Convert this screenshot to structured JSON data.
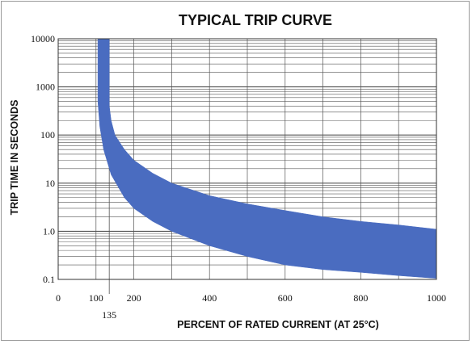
{
  "chart_data": {
    "type": "area",
    "title": "TYPICAL TRIP CURVE",
    "xlabel": "PERCENT OF RATED CURRENT (AT 25°C)",
    "ylabel": "TRIP TIME IN SECONDS",
    "x_scale": "linear",
    "y_scale": "log",
    "xlim": [
      0,
      1000
    ],
    "ylim": [
      0.1,
      10000
    ],
    "x_ticks": [
      {
        "value": 0,
        "label": "0"
      },
      {
        "value": 100,
        "label": "100"
      },
      {
        "value": 200,
        "label": "200"
      },
      {
        "value": 400,
        "label": "400"
      },
      {
        "value": 600,
        "label": "600"
      },
      {
        "value": 800,
        "label": "800"
      },
      {
        "value": 1000,
        "label": "1000"
      }
    ],
    "x_annotation": {
      "value": 135,
      "label": "135"
    },
    "y_ticks": [
      {
        "value": 10000,
        "label": "10000"
      },
      {
        "value": 1000,
        "label": "1000"
      },
      {
        "value": 100,
        "label": "100"
      },
      {
        "value": 10,
        "label": "10"
      },
      {
        "value": 1,
        "label": "1.0"
      },
      {
        "value": 0.1,
        "label": "0.1"
      }
    ],
    "grid": true,
    "band_color": "#4a6cc0",
    "band": {
      "upper": [
        {
          "x": 135,
          "y": 10000
        },
        {
          "x": 135,
          "y": 400
        },
        {
          "x": 140,
          "y": 200
        },
        {
          "x": 150,
          "y": 100
        },
        {
          "x": 175,
          "y": 50
        },
        {
          "x": 200,
          "y": 30
        },
        {
          "x": 250,
          "y": 16
        },
        {
          "x": 300,
          "y": 10
        },
        {
          "x": 400,
          "y": 5.5
        },
        {
          "x": 500,
          "y": 3.7
        },
        {
          "x": 600,
          "y": 2.7
        },
        {
          "x": 700,
          "y": 2.0
        },
        {
          "x": 800,
          "y": 1.6
        },
        {
          "x": 900,
          "y": 1.35
        },
        {
          "x": 1000,
          "y": 1.1
        }
      ],
      "lower": [
        {
          "x": 105,
          "y": 10000
        },
        {
          "x": 105,
          "y": 1000
        },
        {
          "x": 105,
          "y": 500
        },
        {
          "x": 110,
          "y": 150
        },
        {
          "x": 120,
          "y": 50
        },
        {
          "x": 140,
          "y": 15
        },
        {
          "x": 175,
          "y": 5
        },
        {
          "x": 200,
          "y": 3
        },
        {
          "x": 250,
          "y": 1.6
        },
        {
          "x": 300,
          "y": 1.0
        },
        {
          "x": 400,
          "y": 0.5
        },
        {
          "x": 500,
          "y": 0.3
        },
        {
          "x": 600,
          "y": 0.2
        },
        {
          "x": 700,
          "y": 0.16
        },
        {
          "x": 800,
          "y": 0.14
        },
        {
          "x": 900,
          "y": 0.12
        },
        {
          "x": 1000,
          "y": 0.105
        }
      ]
    }
  }
}
